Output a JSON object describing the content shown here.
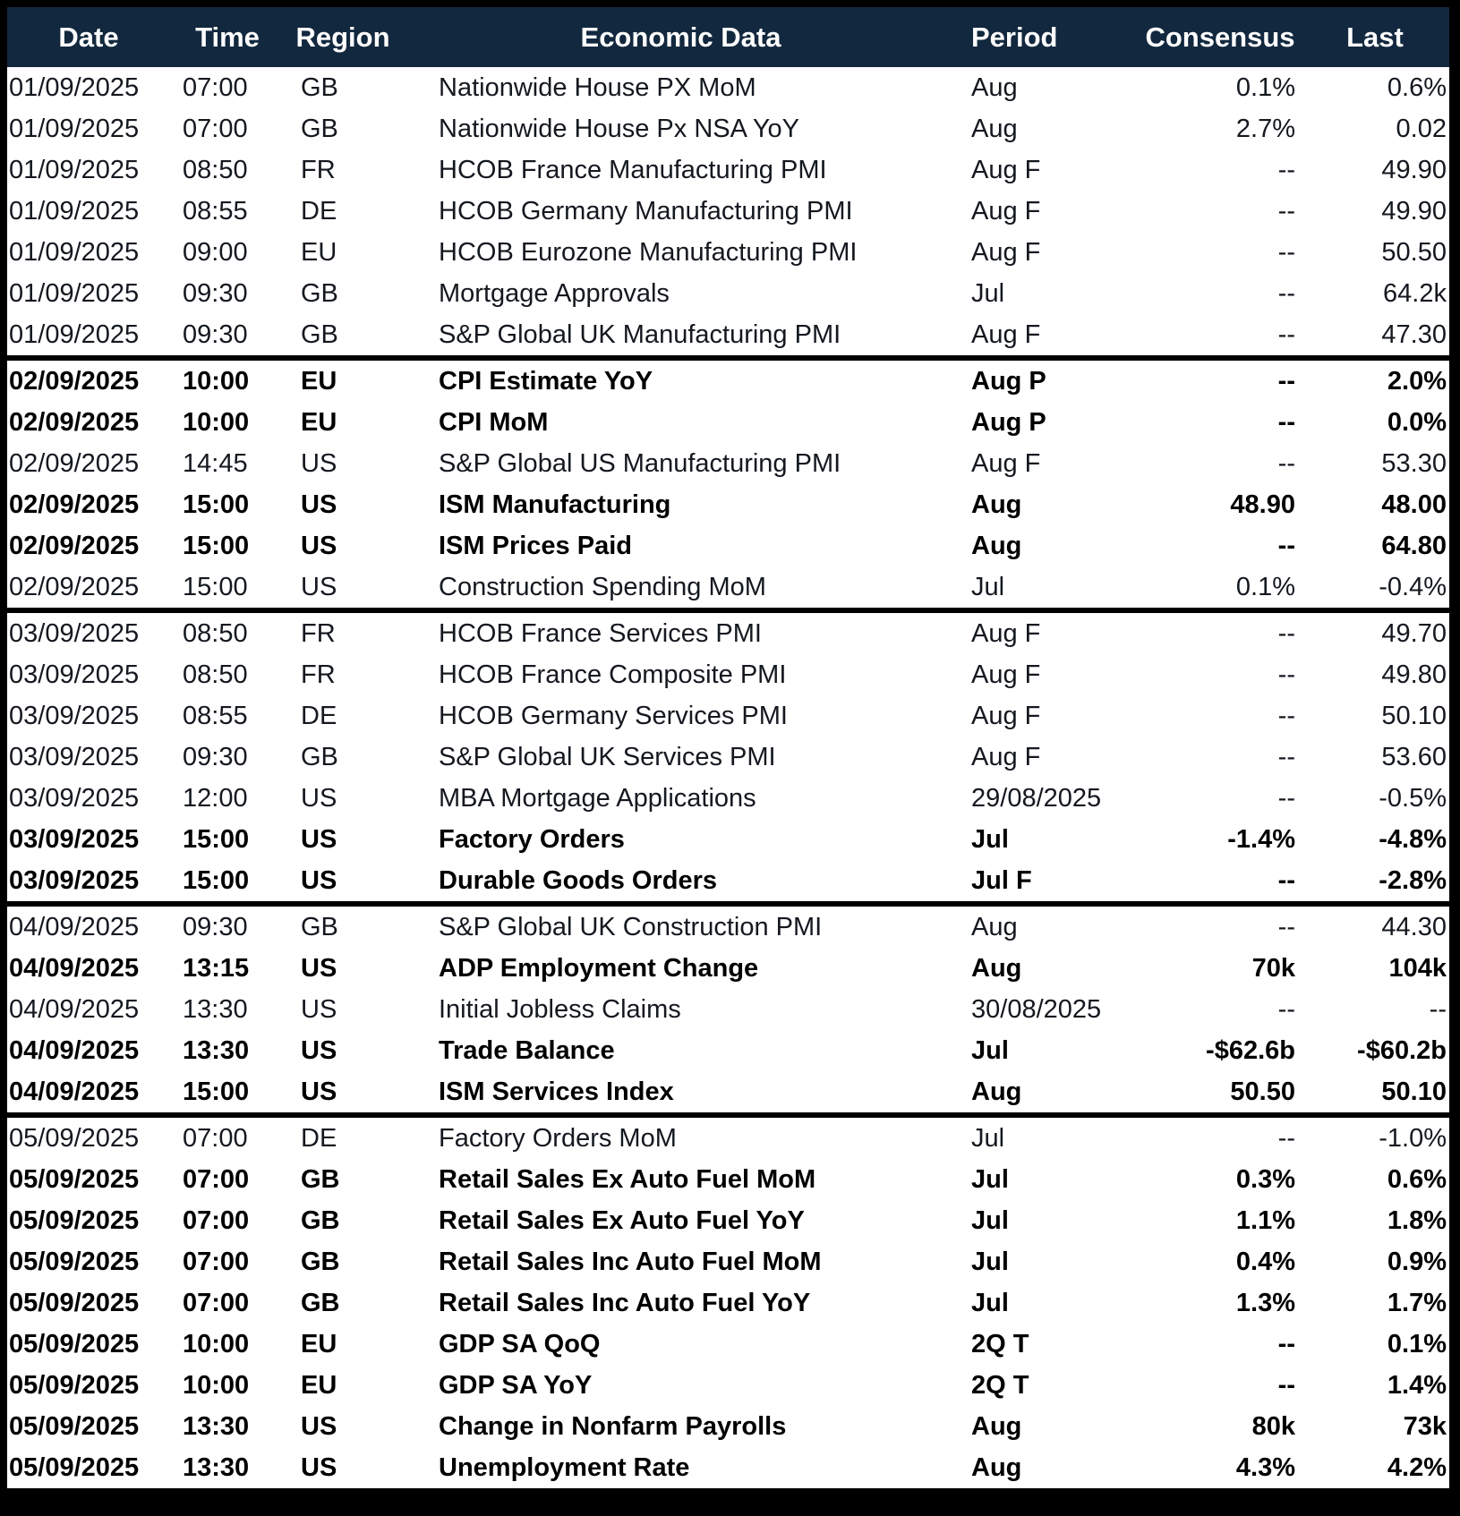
{
  "colors": {
    "header_bg": "#12283E",
    "header_text": "#FFFFFF",
    "row_bg": "#FFFFFF",
    "row_text": "#14181F",
    "bold_row_text": "#000000",
    "group_separator": "#000000",
    "outer_frame": "#000000"
  },
  "table": {
    "columns": [
      "Date",
      "Time",
      "Region",
      "Economic Data",
      "Period",
      "Consensus",
      "Last"
    ],
    "groups": [
      {
        "rows": [
          {
            "date": "01/09/2025",
            "time": "07:00",
            "region": "GB",
            "event": "Nationwide House PX MoM",
            "period": "Aug",
            "consensus": "0.1%",
            "last": "0.6%",
            "bold": false
          },
          {
            "date": "01/09/2025",
            "time": "07:00",
            "region": "GB",
            "event": "Nationwide House Px NSA YoY",
            "period": "Aug",
            "consensus": "2.7%",
            "last": "0.02",
            "bold": false
          },
          {
            "date": "01/09/2025",
            "time": "08:50",
            "region": "FR",
            "event": "HCOB France Manufacturing PMI",
            "period": "Aug F",
            "consensus": "--",
            "last": "49.90",
            "bold": false
          },
          {
            "date": "01/09/2025",
            "time": "08:55",
            "region": "DE",
            "event": "HCOB Germany Manufacturing PMI",
            "period": "Aug F",
            "consensus": "--",
            "last": "49.90",
            "bold": false
          },
          {
            "date": "01/09/2025",
            "time": "09:00",
            "region": "EU",
            "event": "HCOB Eurozone Manufacturing PMI",
            "period": "Aug F",
            "consensus": "--",
            "last": "50.50",
            "bold": false
          },
          {
            "date": "01/09/2025",
            "time": "09:30",
            "region": "GB",
            "event": "Mortgage Approvals",
            "period": "Jul",
            "consensus": "--",
            "last": "64.2k",
            "bold": false
          },
          {
            "date": "01/09/2025",
            "time": "09:30",
            "region": "GB",
            "event": "S&P Global UK Manufacturing PMI",
            "period": "Aug F",
            "consensus": "--",
            "last": "47.30",
            "bold": false
          }
        ]
      },
      {
        "rows": [
          {
            "date": "02/09/2025",
            "time": "10:00",
            "region": "EU",
            "event": "CPI Estimate YoY",
            "period": "Aug P",
            "consensus": "--",
            "last": "2.0%",
            "bold": true
          },
          {
            "date": "02/09/2025",
            "time": "10:00",
            "region": "EU",
            "event": "CPI MoM",
            "period": "Aug P",
            "consensus": "--",
            "last": "0.0%",
            "bold": true
          },
          {
            "date": "02/09/2025",
            "time": "14:45",
            "region": "US",
            "event": "S&P Global US Manufacturing PMI",
            "period": "Aug F",
            "consensus": "--",
            "last": "53.30",
            "bold": false
          },
          {
            "date": "02/09/2025",
            "time": "15:00",
            "region": "US",
            "event": "ISM Manufacturing",
            "period": "Aug",
            "consensus": "48.90",
            "last": "48.00",
            "bold": true
          },
          {
            "date": "02/09/2025",
            "time": "15:00",
            "region": "US",
            "event": "ISM Prices Paid",
            "period": "Aug",
            "consensus": "--",
            "last": "64.80",
            "bold": true
          },
          {
            "date": "02/09/2025",
            "time": "15:00",
            "region": "US",
            "event": "Construction Spending MoM",
            "period": "Jul",
            "consensus": "0.1%",
            "last": "-0.4%",
            "bold": false
          }
        ]
      },
      {
        "rows": [
          {
            "date": "03/09/2025",
            "time": "08:50",
            "region": "FR",
            "event": "HCOB France Services PMI",
            "period": "Aug F",
            "consensus": "--",
            "last": "49.70",
            "bold": false
          },
          {
            "date": "03/09/2025",
            "time": "08:50",
            "region": "FR",
            "event": "HCOB France Composite PMI",
            "period": "Aug F",
            "consensus": "--",
            "last": "49.80",
            "bold": false
          },
          {
            "date": "03/09/2025",
            "time": "08:55",
            "region": "DE",
            "event": "HCOB Germany Services PMI",
            "period": "Aug F",
            "consensus": "--",
            "last": "50.10",
            "bold": false
          },
          {
            "date": "03/09/2025",
            "time": "09:30",
            "region": "GB",
            "event": "S&P Global UK Services PMI",
            "period": "Aug F",
            "consensus": "--",
            "last": "53.60",
            "bold": false
          },
          {
            "date": "03/09/2025",
            "time": "12:00",
            "region": "US",
            "event": "MBA Mortgage Applications",
            "period": "29/08/2025",
            "consensus": "--",
            "last": "-0.5%",
            "bold": false
          },
          {
            "date": "03/09/2025",
            "time": "15:00",
            "region": "US",
            "event": "Factory Orders",
            "period": "Jul",
            "consensus": "-1.4%",
            "last": "-4.8%",
            "bold": true
          },
          {
            "date": "03/09/2025",
            "time": "15:00",
            "region": "US",
            "event": "Durable Goods Orders",
            "period": "Jul F",
            "consensus": "--",
            "last": "-2.8%",
            "bold": true
          }
        ]
      },
      {
        "rows": [
          {
            "date": "04/09/2025",
            "time": "09:30",
            "region": "GB",
            "event": "S&P Global UK Construction PMI",
            "period": "Aug",
            "consensus": "--",
            "last": "44.30",
            "bold": false
          },
          {
            "date": "04/09/2025",
            "time": "13:15",
            "region": "US",
            "event": "ADP Employment Change",
            "period": "Aug",
            "consensus": "70k",
            "last": "104k",
            "bold": true
          },
          {
            "date": "04/09/2025",
            "time": "13:30",
            "region": "US",
            "event": "Initial Jobless Claims",
            "period": "30/08/2025",
            "consensus": "--",
            "last": "--",
            "bold": false
          },
          {
            "date": "04/09/2025",
            "time": "13:30",
            "region": "US",
            "event": "Trade Balance",
            "period": "Jul",
            "consensus": "-$62.6b",
            "last": "-$60.2b",
            "bold": true
          },
          {
            "date": "04/09/2025",
            "time": "15:00",
            "region": "US",
            "event": "ISM Services Index",
            "period": "Aug",
            "consensus": "50.50",
            "last": "50.10",
            "bold": true
          }
        ]
      },
      {
        "rows": [
          {
            "date": "05/09/2025",
            "time": "07:00",
            "region": "DE",
            "event": "Factory Orders MoM",
            "period": "Jul",
            "consensus": "--",
            "last": "-1.0%",
            "bold": false
          },
          {
            "date": "05/09/2025",
            "time": "07:00",
            "region": "GB",
            "event": "Retail Sales Ex Auto Fuel MoM",
            "period": "Jul",
            "consensus": "0.3%",
            "last": "0.6%",
            "bold": true
          },
          {
            "date": "05/09/2025",
            "time": "07:00",
            "region": "GB",
            "event": "Retail Sales Ex Auto Fuel YoY",
            "period": "Jul",
            "consensus": "1.1%",
            "last": "1.8%",
            "bold": true
          },
          {
            "date": "05/09/2025",
            "time": "07:00",
            "region": "GB",
            "event": "Retail Sales Inc Auto Fuel MoM",
            "period": "Jul",
            "consensus": "0.4%",
            "last": "0.9%",
            "bold": true
          },
          {
            "date": "05/09/2025",
            "time": "07:00",
            "region": "GB",
            "event": "Retail Sales Inc Auto Fuel YoY",
            "period": "Jul",
            "consensus": "1.3%",
            "last": "1.7%",
            "bold": true
          },
          {
            "date": "05/09/2025",
            "time": "10:00",
            "region": "EU",
            "event": "GDP SA QoQ",
            "period": "2Q T",
            "consensus": "--",
            "last": "0.1%",
            "bold": true
          },
          {
            "date": "05/09/2025",
            "time": "10:00",
            "region": "EU",
            "event": "GDP SA YoY",
            "period": "2Q T",
            "consensus": "--",
            "last": "1.4%",
            "bold": true
          },
          {
            "date": "05/09/2025",
            "time": "13:30",
            "region": "US",
            "event": "Change in Nonfarm Payrolls",
            "period": "Aug",
            "consensus": "80k",
            "last": "73k",
            "bold": true
          },
          {
            "date": "05/09/2025",
            "time": "13:30",
            "region": "US",
            "event": "Unemployment Rate",
            "period": "Aug",
            "consensus": "4.3%",
            "last": "4.2%",
            "bold": true
          }
        ]
      }
    ]
  }
}
